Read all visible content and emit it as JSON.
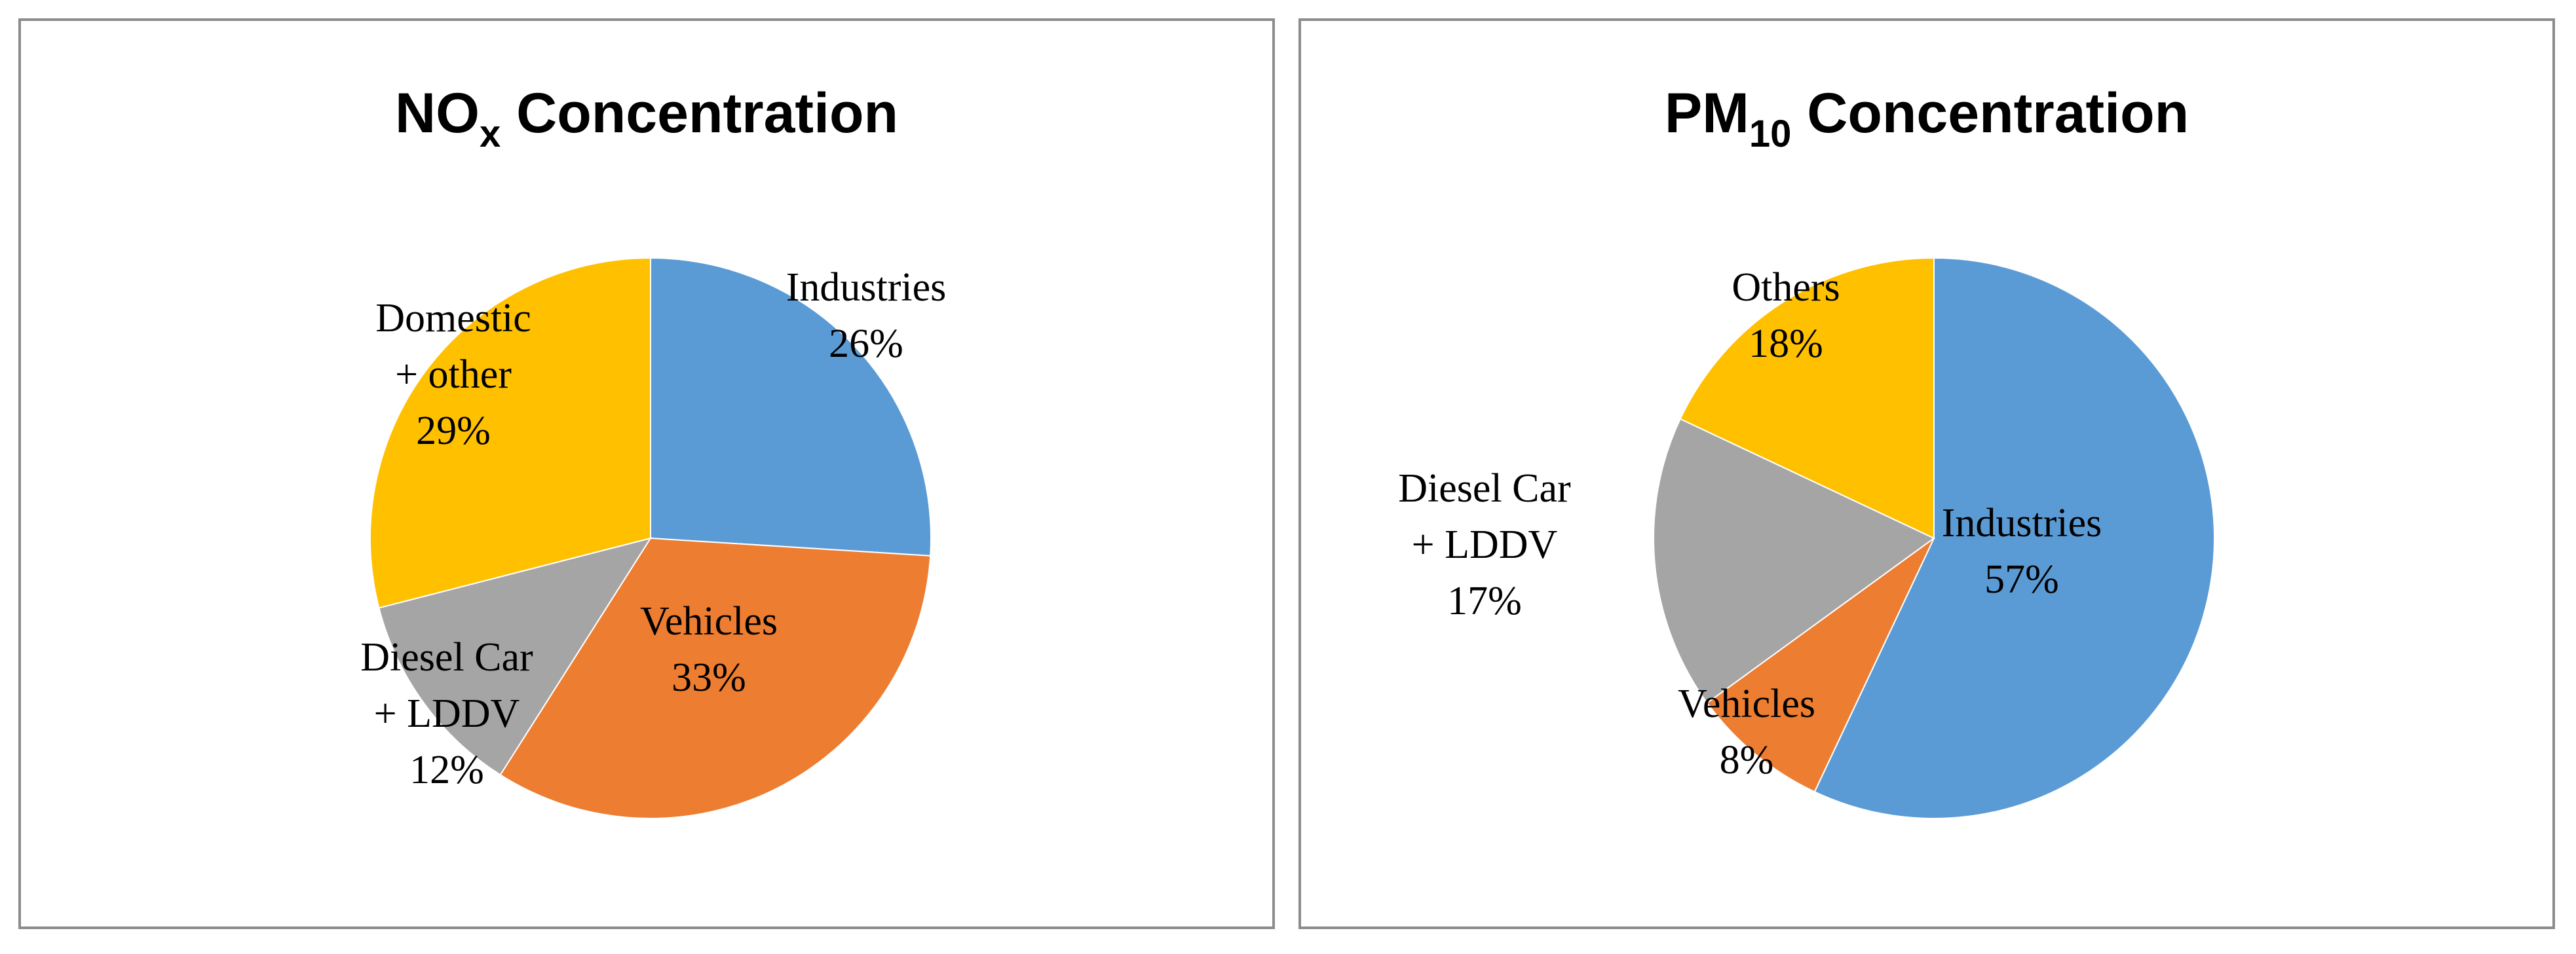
{
  "chart_data": [
    {
      "type": "pie",
      "title": {
        "main": "NO",
        "sub": "x",
        "rest": " Concentration"
      },
      "start_angle_deg": 0,
      "slices": [
        {
          "label": [
            "Industries"
          ],
          "value": 26,
          "pct": "26%",
          "color": "#5B9BD5"
        },
        {
          "label": [
            "Vehicles"
          ],
          "value": 33,
          "pct": "33%",
          "color": "#ED7D31"
        },
        {
          "label": [
            "Diesel Car",
            "+ LDDV"
          ],
          "value": 12,
          "pct": "12%",
          "color": "#A5A5A5"
        },
        {
          "label": [
            "Domestic",
            "+ other"
          ],
          "value": 29,
          "pct": "29%",
          "color": "#FFC000"
        }
      ]
    },
    {
      "type": "pie",
      "title": {
        "main": "PM",
        "sub": "10",
        "rest": " Concentration"
      },
      "start_angle_deg": 0,
      "slices": [
        {
          "label": [
            "Industries"
          ],
          "value": 57,
          "pct": "57%",
          "color": "#5B9BD5"
        },
        {
          "label": [
            "Vehicles"
          ],
          "value": 8,
          "pct": "8%",
          "color": "#ED7D31"
        },
        {
          "label": [
            "Diesel Car",
            "+ LDDV"
          ],
          "value": 17,
          "pct": "17%",
          "color": "#A5A5A5"
        },
        {
          "label": [
            "Others"
          ],
          "value": 18,
          "pct": "18%",
          "color": "#FFC000"
        }
      ]
    }
  ]
}
